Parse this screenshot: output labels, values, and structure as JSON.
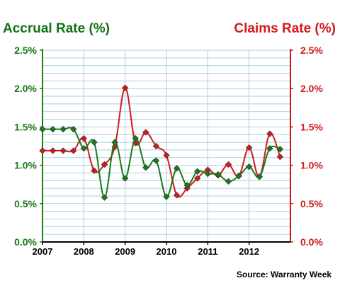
{
  "chart_data": {
    "type": "line",
    "title_left": "Accrual Rate (%)",
    "title_right": "Claims Rate (%)",
    "source": "Source: Warranty Week",
    "x_ticks": [
      "2007",
      "2008",
      "2009",
      "2010",
      "2011",
      "2012"
    ],
    "y_ticks": [
      "0.0%",
      "0.5%",
      "1.0%",
      "1.5%",
      "2.0%",
      "2.5%"
    ],
    "ylim": [
      0,
      2.5
    ],
    "xlim": [
      2007,
      2013.0
    ],
    "grid": true,
    "colors": {
      "accrual": "#1a7a1a",
      "claims": "#d21a1a",
      "grid": "#a8cfe3"
    },
    "series": [
      {
        "key": "accrual",
        "axis": "left",
        "x": [
          2007.0,
          2007.25,
          2007.5,
          2007.75,
          2008.0,
          2008.25,
          2008.5,
          2008.75,
          2009.0,
          2009.25,
          2009.5,
          2009.75,
          2010.0,
          2010.25,
          2010.5,
          2010.75,
          2011.0,
          2011.25,
          2011.5,
          2011.75,
          2012.0,
          2012.25,
          2012.5,
          2012.75
        ],
        "values": [
          1.47,
          1.47,
          1.47,
          1.47,
          1.22,
          1.3,
          0.58,
          1.3,
          0.83,
          1.35,
          0.97,
          1.06,
          0.59,
          0.96,
          0.74,
          0.92,
          0.89,
          0.88,
          0.79,
          0.86,
          0.98,
          0.85,
          1.22,
          1.21
        ]
      },
      {
        "key": "claims",
        "axis": "right",
        "x": [
          2007.0,
          2007.25,
          2007.5,
          2007.75,
          2008.0,
          2008.25,
          2008.5,
          2008.75,
          2009.0,
          2009.25,
          2009.5,
          2009.75,
          2010.0,
          2010.25,
          2010.5,
          2010.75,
          2011.0,
          2011.25,
          2011.5,
          2011.75,
          2012.0,
          2012.25,
          2012.5,
          2012.75
        ],
        "values": [
          1.19,
          1.19,
          1.19,
          1.19,
          1.35,
          0.93,
          1.01,
          1.24,
          2.01,
          1.29,
          1.43,
          1.25,
          1.13,
          0.61,
          0.7,
          0.83,
          0.94,
          0.87,
          1.01,
          0.86,
          1.23,
          0.85,
          1.41,
          1.11
        ]
      }
    ]
  }
}
